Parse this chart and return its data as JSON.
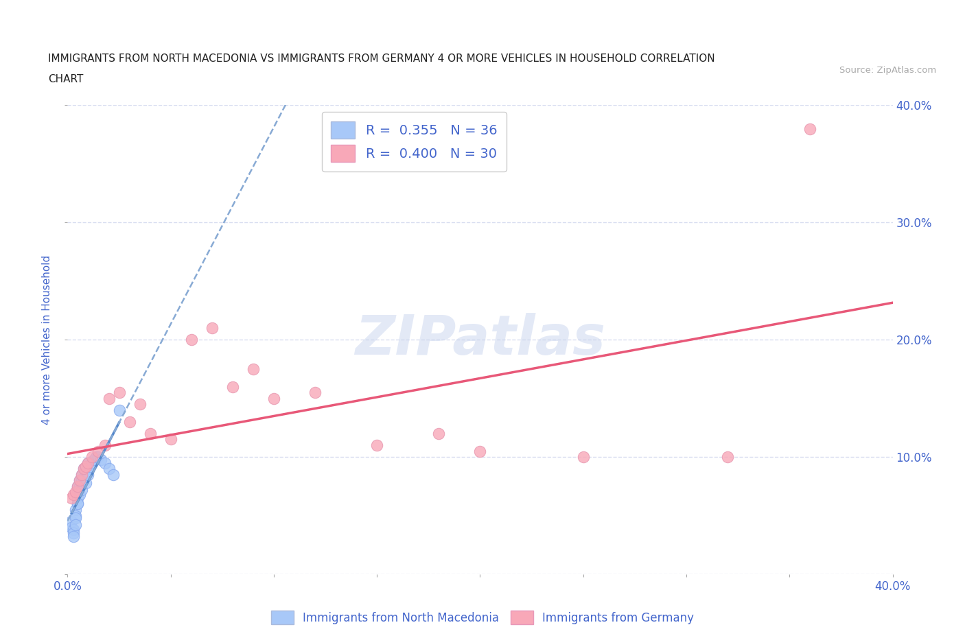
{
  "title_line1": "IMMIGRANTS FROM NORTH MACEDONIA VS IMMIGRANTS FROM GERMANY 4 OR MORE VEHICLES IN HOUSEHOLD CORRELATION",
  "title_line2": "CHART",
  "source_text": "Source: ZipAtlas.com",
  "ylabel": "4 or more Vehicles in Household",
  "xlim": [
    0.0,
    0.4
  ],
  "ylim": [
    0.0,
    0.4
  ],
  "color_macedonia": "#a8c8f8",
  "color_germany": "#f8a8b8",
  "color_trendline_mac": "#5588cc",
  "color_trendline_mac_dashed": "#88aad4",
  "color_trendline_ger": "#e85878",
  "R_macedonia": 0.355,
  "N_macedonia": 36,
  "R_germany": 0.4,
  "N_germany": 30,
  "legend_label_macedonia": "Immigrants from North Macedonia",
  "legend_label_germany": "Immigrants from Germany",
  "watermark": "ZIPatlas",
  "background_color": "#ffffff",
  "grid_color": "#d8ddf0",
  "text_color": "#4466cc",
  "scatter_edge_mac": "#88aaee",
  "scatter_edge_ger": "#e898b0",
  "macedonia_x": [
    0.002,
    0.002,
    0.003,
    0.003,
    0.003,
    0.004,
    0.004,
    0.004,
    0.004,
    0.005,
    0.005,
    0.005,
    0.005,
    0.006,
    0.006,
    0.006,
    0.007,
    0.007,
    0.007,
    0.008,
    0.008,
    0.009,
    0.009,
    0.01,
    0.01,
    0.011,
    0.012,
    0.013,
    0.014,
    0.015,
    0.016,
    0.018,
    0.02,
    0.022,
    0.025,
    0.005
  ],
  "macedonia_y": [
    0.045,
    0.04,
    0.038,
    0.035,
    0.032,
    0.055,
    0.05,
    0.048,
    0.042,
    0.075,
    0.07,
    0.065,
    0.06,
    0.08,
    0.075,
    0.068,
    0.085,
    0.08,
    0.072,
    0.09,
    0.082,
    0.088,
    0.078,
    0.095,
    0.085,
    0.092,
    0.095,
    0.098,
    0.1,
    0.1,
    0.098,
    0.095,
    0.09,
    0.085,
    0.14,
    0.06
  ],
  "germany_x": [
    0.002,
    0.003,
    0.004,
    0.005,
    0.006,
    0.007,
    0.008,
    0.009,
    0.01,
    0.012,
    0.015,
    0.018,
    0.02,
    0.025,
    0.03,
    0.035,
    0.04,
    0.05,
    0.06,
    0.07,
    0.08,
    0.09,
    0.1,
    0.12,
    0.15,
    0.18,
    0.2,
    0.25,
    0.32,
    0.36
  ],
  "germany_y": [
    0.065,
    0.068,
    0.07,
    0.075,
    0.08,
    0.085,
    0.09,
    0.092,
    0.095,
    0.1,
    0.105,
    0.11,
    0.15,
    0.155,
    0.13,
    0.145,
    0.12,
    0.115,
    0.2,
    0.21,
    0.16,
    0.175,
    0.15,
    0.155,
    0.11,
    0.12,
    0.105,
    0.1,
    0.1,
    0.38
  ]
}
